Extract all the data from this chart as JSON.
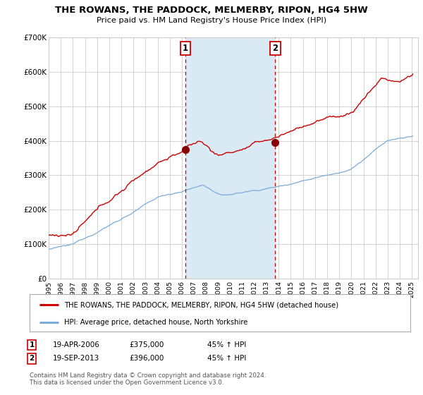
{
  "title": "THE ROWANS, THE PADDOCK, MELMERBY, RIPON, HG4 5HW",
  "subtitle": "Price paid vs. HM Land Registry's House Price Index (HPI)",
  "ylim": [
    0,
    700000
  ],
  "yticks": [
    0,
    100000,
    200000,
    300000,
    400000,
    500000,
    600000,
    700000
  ],
  "ytick_labels": [
    "£0",
    "£100K",
    "£200K",
    "£300K",
    "£400K",
    "£500K",
    "£600K",
    "£700K"
  ],
  "red_line_color": "#cc0000",
  "blue_line_color": "#7aabdb",
  "shading_color": "#daeaf5",
  "marker_color": "#880000",
  "dashed_line_color": "#cc0000",
  "grid_color": "#cccccc",
  "bg_color": "#ffffff",
  "purchase1_year": 2006.29,
  "purchase1_price": 375000,
  "purchase2_year": 2013.71,
  "purchase2_price": 396000,
  "legend_entries": [
    "THE ROWANS, THE PADDOCK, MELMERBY, RIPON, HG4 5HW (detached house)",
    "HPI: Average price, detached house, North Yorkshire"
  ],
  "table_row1": [
    "1",
    "19-APR-2006",
    "£375,000",
    "45% ↑ HPI"
  ],
  "table_row2": [
    "2",
    "19-SEP-2013",
    "£396,000",
    "45% ↑ HPI"
  ],
  "footer": "Contains HM Land Registry data © Crown copyright and database right 2024.\nThis data is licensed under the Open Government Licence v3.0."
}
